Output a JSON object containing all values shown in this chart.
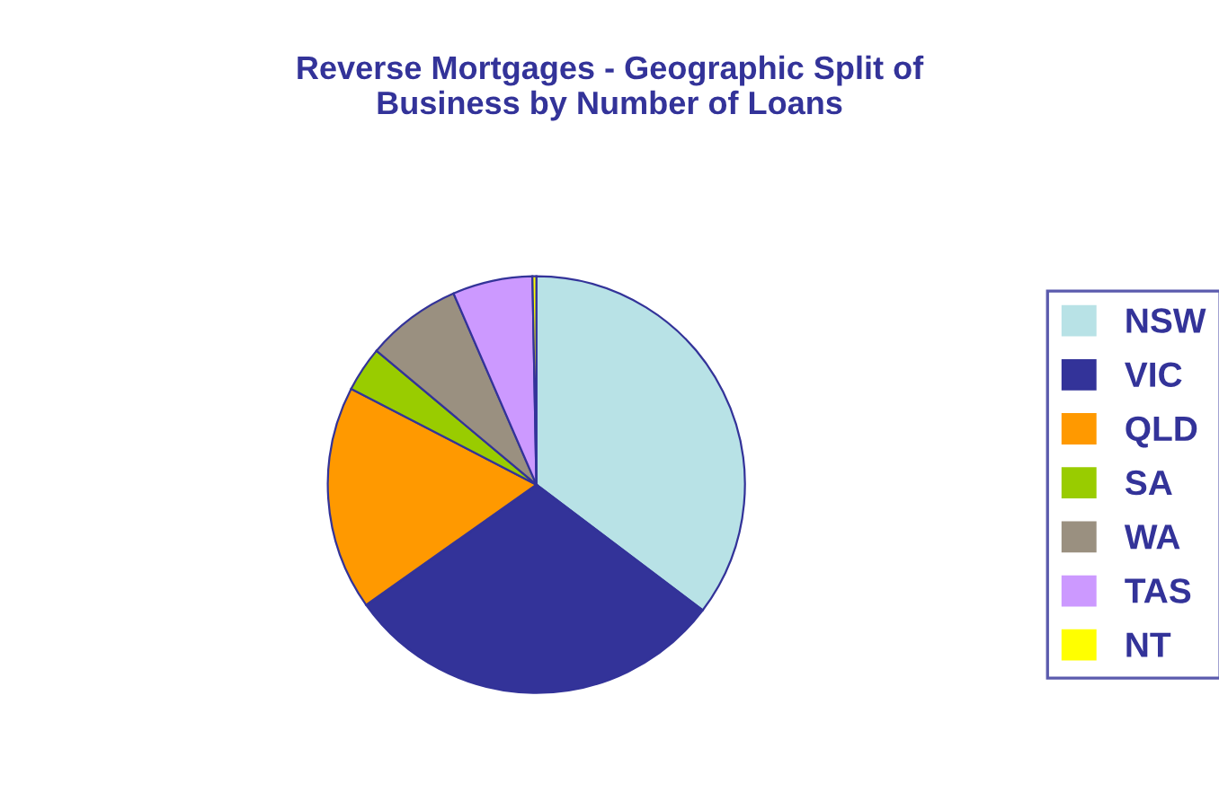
{
  "chart_data": {
    "type": "pie",
    "title": "Reverse Mortgages - Geographic Split of\nBusiness by Number of Loans",
    "categories": [
      "NSW",
      "VIC",
      "QLD",
      "SA",
      "WA",
      "TAS",
      "NT"
    ],
    "values": [
      35.3,
      29.9,
      17.4,
      3.5,
      7.4,
      6.2,
      0.3
    ],
    "colors": [
      "#b8e2e6",
      "#333399",
      "#ff9900",
      "#99cc00",
      "#9a9080",
      "#cc99ff",
      "#ffff00"
    ],
    "legend": "right"
  }
}
